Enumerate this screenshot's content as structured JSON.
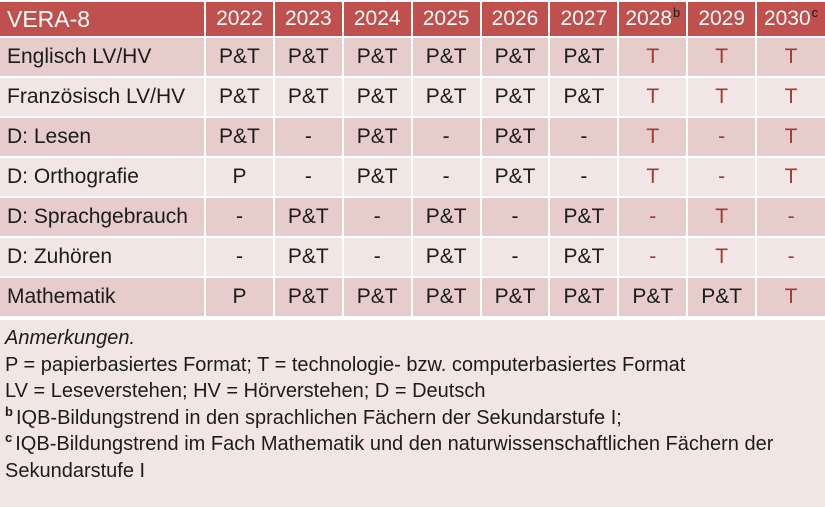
{
  "colors": {
    "header_bg": "#C0504D",
    "header_top_border": "#9E4340",
    "header_text": "#FFFFFF",
    "row_band_dark": "#E6CCCA",
    "row_band_light": "#F2E6E4",
    "notes_bg": "#F2E6E4",
    "accent_red_text": "#A03B37",
    "body_text": "#1C1C1C",
    "gridline": "#FFFFFF"
  },
  "table": {
    "title": "VERA-8",
    "columns": [
      {
        "year": "2022",
        "sup": ""
      },
      {
        "year": "2023",
        "sup": ""
      },
      {
        "year": "2024",
        "sup": ""
      },
      {
        "year": "2025",
        "sup": ""
      },
      {
        "year": "2026",
        "sup": ""
      },
      {
        "year": "2027",
        "sup": ""
      },
      {
        "year": "2028",
        "sup": "b"
      },
      {
        "year": "2029",
        "sup": ""
      },
      {
        "year": "2030",
        "sup": "c"
      }
    ],
    "rows": [
      {
        "label": "Englisch LV/HV",
        "cells": [
          {
            "v": "P&T"
          },
          {
            "v": "P&T"
          },
          {
            "v": "P&T"
          },
          {
            "v": "P&T"
          },
          {
            "v": "P&T"
          },
          {
            "v": "P&T"
          },
          {
            "v": "T",
            "red": true
          },
          {
            "v": "T",
            "red": true
          },
          {
            "v": "T",
            "red": true
          }
        ]
      },
      {
        "label": "Französisch LV/HV",
        "cells": [
          {
            "v": "P&T"
          },
          {
            "v": "P&T"
          },
          {
            "v": "P&T"
          },
          {
            "v": "P&T"
          },
          {
            "v": "P&T"
          },
          {
            "v": "P&T"
          },
          {
            "v": "T",
            "red": true
          },
          {
            "v": "T",
            "red": true
          },
          {
            "v": "T",
            "red": true
          }
        ]
      },
      {
        "label": "D: Lesen",
        "cells": [
          {
            "v": "P&T"
          },
          {
            "v": "-"
          },
          {
            "v": "P&T"
          },
          {
            "v": "-"
          },
          {
            "v": "P&T"
          },
          {
            "v": "-"
          },
          {
            "v": "T",
            "red": true
          },
          {
            "v": "-",
            "red": true
          },
          {
            "v": "T",
            "red": true
          }
        ]
      },
      {
        "label": "D: Orthografie",
        "cells": [
          {
            "v": "P"
          },
          {
            "v": "-"
          },
          {
            "v": "P&T"
          },
          {
            "v": "-"
          },
          {
            "v": "P&T"
          },
          {
            "v": "-"
          },
          {
            "v": "T",
            "red": true
          },
          {
            "v": "-",
            "red": true
          },
          {
            "v": "T",
            "red": true
          }
        ]
      },
      {
        "label": "D: Sprachgebrauch",
        "cells": [
          {
            "v": "-"
          },
          {
            "v": "P&T"
          },
          {
            "v": "-"
          },
          {
            "v": "P&T"
          },
          {
            "v": "-"
          },
          {
            "v": "P&T"
          },
          {
            "v": "-",
            "red": true
          },
          {
            "v": "T",
            "red": true
          },
          {
            "v": "-",
            "red": true
          }
        ]
      },
      {
        "label": "D: Zuhören",
        "cells": [
          {
            "v": "-"
          },
          {
            "v": "P&T"
          },
          {
            "v": "-"
          },
          {
            "v": "P&T"
          },
          {
            "v": "-"
          },
          {
            "v": "P&T"
          },
          {
            "v": "-",
            "red": true
          },
          {
            "v": "T",
            "red": true
          },
          {
            "v": "-",
            "red": true
          }
        ]
      },
      {
        "label": "Mathematik",
        "cells": [
          {
            "v": "P"
          },
          {
            "v": "P&T"
          },
          {
            "v": "P&T"
          },
          {
            "v": "P&T"
          },
          {
            "v": "P&T"
          },
          {
            "v": "P&T"
          },
          {
            "v": "P&T"
          },
          {
            "v": "P&T"
          },
          {
            "v": "T",
            "red": true
          }
        ]
      }
    ]
  },
  "notes": {
    "heading": "Anmerkungen.",
    "lines": [
      {
        "sup": "",
        "text": "P = papierbasiertes Format; T = technologie- bzw. computerbasiertes Format"
      },
      {
        "sup": "",
        "text": "LV = Leseverstehen; HV = Hörverstehen; D = Deutsch"
      },
      {
        "sup": "b",
        "text": "IQB-Bildungstrend in den sprachlichen Fächern der Sekundarstufe I;"
      },
      {
        "sup": "c",
        "text": "IQB-Bildungstrend im Fach Mathematik und den naturwissenschaftlichen Fächern der Sekundarstufe I"
      }
    ]
  }
}
